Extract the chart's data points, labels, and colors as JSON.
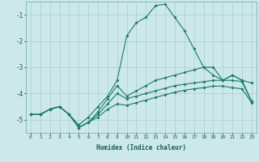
{
  "xlabel": "Humidex (Indice chaleur)",
  "background_color": "#cce8e8",
  "grid_color": "#aacfcf",
  "line_color": "#1a7a6e",
  "xlim": [
    -0.5,
    23.5
  ],
  "ylim": [
    -5.5,
    -0.5
  ],
  "yticks": [
    -5,
    -4,
    -3,
    -2,
    -1
  ],
  "xticks": [
    0,
    1,
    2,
    3,
    4,
    5,
    6,
    7,
    8,
    9,
    10,
    11,
    12,
    13,
    14,
    15,
    16,
    17,
    18,
    19,
    20,
    21,
    22,
    23
  ],
  "line1_x": [
    0,
    1,
    2,
    3,
    4,
    5,
    6,
    7,
    8,
    9,
    10,
    11,
    12,
    13,
    14,
    15,
    16,
    17,
    18,
    19,
    20,
    21,
    22,
    23
  ],
  "line1_y": [
    -4.8,
    -4.8,
    -4.6,
    -4.5,
    -4.8,
    -5.2,
    -4.9,
    -4.5,
    -4.1,
    -3.5,
    -1.8,
    -1.3,
    -1.1,
    -0.65,
    -0.6,
    -1.1,
    -1.6,
    -2.3,
    -3.0,
    -3.3,
    -3.5,
    -3.3,
    -3.5,
    -3.6
  ],
  "line2_x": [
    0,
    1,
    2,
    3,
    4,
    5,
    6,
    7,
    8,
    9,
    10,
    11,
    12,
    13,
    14,
    15,
    16,
    17,
    18,
    19,
    20,
    21,
    22,
    23
  ],
  "line2_y": [
    -4.8,
    -4.8,
    -4.6,
    -4.5,
    -4.8,
    -5.3,
    -5.1,
    -4.7,
    -4.2,
    -3.7,
    -4.1,
    -3.9,
    -3.7,
    -3.5,
    -3.4,
    -3.3,
    -3.2,
    -3.1,
    -3.0,
    -3.0,
    -3.5,
    -3.3,
    -3.5,
    -4.3
  ],
  "line3_x": [
    0,
    1,
    2,
    3,
    4,
    5,
    6,
    7,
    8,
    9,
    10,
    11,
    12,
    13,
    14,
    15,
    16,
    17,
    18,
    19,
    20,
    21,
    22,
    23
  ],
  "line3_y": [
    -4.8,
    -4.8,
    -4.6,
    -4.5,
    -4.8,
    -5.3,
    -5.1,
    -4.8,
    -4.4,
    -4.0,
    -4.2,
    -4.1,
    -4.0,
    -3.9,
    -3.8,
    -3.7,
    -3.65,
    -3.6,
    -3.55,
    -3.5,
    -3.5,
    -3.5,
    -3.55,
    -4.3
  ],
  "line4_x": [
    0,
    1,
    2,
    3,
    4,
    5,
    6,
    7,
    8,
    9,
    10,
    11,
    12,
    13,
    14,
    15,
    16,
    17,
    18,
    19,
    20,
    21,
    22,
    23
  ],
  "line4_y": [
    -4.8,
    -4.8,
    -4.6,
    -4.5,
    -4.8,
    -5.3,
    -5.1,
    -4.9,
    -4.6,
    -4.4,
    -4.45,
    -4.35,
    -4.25,
    -4.15,
    -4.05,
    -3.95,
    -3.88,
    -3.82,
    -3.78,
    -3.72,
    -3.72,
    -3.78,
    -3.82,
    -4.35
  ]
}
